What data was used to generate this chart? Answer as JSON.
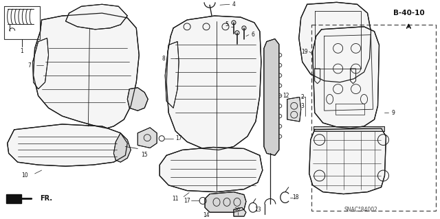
{
  "bg_color": "#ffffff",
  "line_color": "#1a1a1a",
  "text_color": "#111111",
  "ref_label": "B-40-10",
  "diagram_code": "SNAC°84002",
  "fr_label": "FR.",
  "figsize": [
    6.4,
    3.19
  ],
  "dpi": 100,
  "label_fs": 5.5,
  "bold_fs": 7.5
}
